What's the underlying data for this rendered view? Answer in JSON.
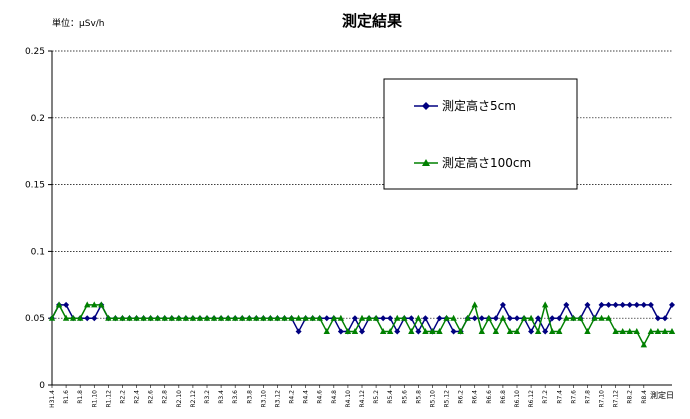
{
  "chart_data": {
    "type": "line",
    "title": "測定結果",
    "unit_label": "単位：μSv/h",
    "corner_label": "測定日",
    "xlabel": "",
    "ylabel": "",
    "ylim": [
      0,
      0.25
    ],
    "yticks": [
      "0",
      "0.05",
      "0.1",
      "0.15",
      "0.2",
      "0.25"
    ],
    "ytick_values": [
      0,
      0.05,
      0.1,
      0.15,
      0.2,
      0.25
    ],
    "grid": "horizontal dotted",
    "legend_position": "top-right (boxed)",
    "x_tick_labels": [
      "H31.4",
      "R1.6",
      "R1.8",
      "R1.10",
      "R1.12",
      "R2.2",
      "R2.4",
      "R2.6",
      "R2.8",
      "R2.10",
      "R2.12",
      "R3.2",
      "R3.4",
      "R3.6",
      "R3.8",
      "R3.10",
      "R3.12",
      "R4.2",
      "R4.4",
      "R4.6",
      "R4.8",
      "R4.10",
      "R4.12",
      "R5.2",
      "R5.4",
      "R5.6",
      "R5.8",
      "R5.10",
      "R5.12",
      "R6.2",
      "R6.4",
      "R6.6",
      "R6.8",
      "R6.10",
      "R6.12",
      "R7.2",
      "R7.4",
      "R7.6",
      "R7.8",
      "R7.10",
      "R7.12",
      "R8.2",
      "R8.4"
    ],
    "series": [
      {
        "name": "測定高さ5cm",
        "color": "#000080",
        "marker": "diamond",
        "values": [
          0.05,
          0.06,
          0.06,
          0.05,
          0.05,
          0.05,
          0.05,
          0.06,
          0.05,
          0.05,
          0.05,
          0.05,
          0.05,
          0.05,
          0.05,
          0.05,
          0.05,
          0.05,
          0.05,
          0.05,
          0.05,
          0.05,
          0.05,
          0.05,
          0.05,
          0.05,
          0.05,
          0.05,
          0.05,
          0.05,
          0.05,
          0.05,
          0.05,
          0.05,
          0.05,
          0.04,
          0.05,
          0.05,
          0.05,
          0.05,
          0.05,
          0.04,
          0.04,
          0.05,
          0.04,
          0.05,
          0.05,
          0.05,
          0.05,
          0.04,
          0.05,
          0.05,
          0.04,
          0.05,
          0.04,
          0.05,
          0.05,
          0.04,
          0.04,
          0.05,
          0.05,
          0.05,
          0.05,
          0.05,
          0.06,
          0.05,
          0.05,
          0.05,
          0.04,
          0.05,
          0.04,
          0.05,
          0.05,
          0.06,
          0.05,
          0.05,
          0.06,
          0.05,
          0.06,
          0.06,
          0.06,
          0.06,
          0.06,
          0.06,
          0.06,
          0.06,
          0.05,
          0.05,
          0.06
        ]
      },
      {
        "name": "測定高さ100cm",
        "color": "#008000",
        "marker": "triangle",
        "values": [
          0.05,
          0.06,
          0.05,
          0.05,
          0.05,
          0.06,
          0.06,
          0.06,
          0.05,
          0.05,
          0.05,
          0.05,
          0.05,
          0.05,
          0.05,
          0.05,
          0.05,
          0.05,
          0.05,
          0.05,
          0.05,
          0.05,
          0.05,
          0.05,
          0.05,
          0.05,
          0.05,
          0.05,
          0.05,
          0.05,
          0.05,
          0.05,
          0.05,
          0.05,
          0.05,
          0.05,
          0.05,
          0.05,
          0.05,
          0.04,
          0.05,
          0.05,
          0.04,
          0.04,
          0.05,
          0.05,
          0.05,
          0.04,
          0.04,
          0.05,
          0.05,
          0.04,
          0.05,
          0.04,
          0.04,
          0.04,
          0.05,
          0.05,
          0.04,
          0.05,
          0.06,
          0.04,
          0.05,
          0.04,
          0.05,
          0.04,
          0.04,
          0.05,
          0.05,
          0.04,
          0.06,
          0.04,
          0.04,
          0.05,
          0.05,
          0.05,
          0.04,
          0.05,
          0.05,
          0.05,
          0.04,
          0.04,
          0.04,
          0.04,
          0.03,
          0.04,
          0.04,
          0.04,
          0.04
        ]
      }
    ]
  }
}
